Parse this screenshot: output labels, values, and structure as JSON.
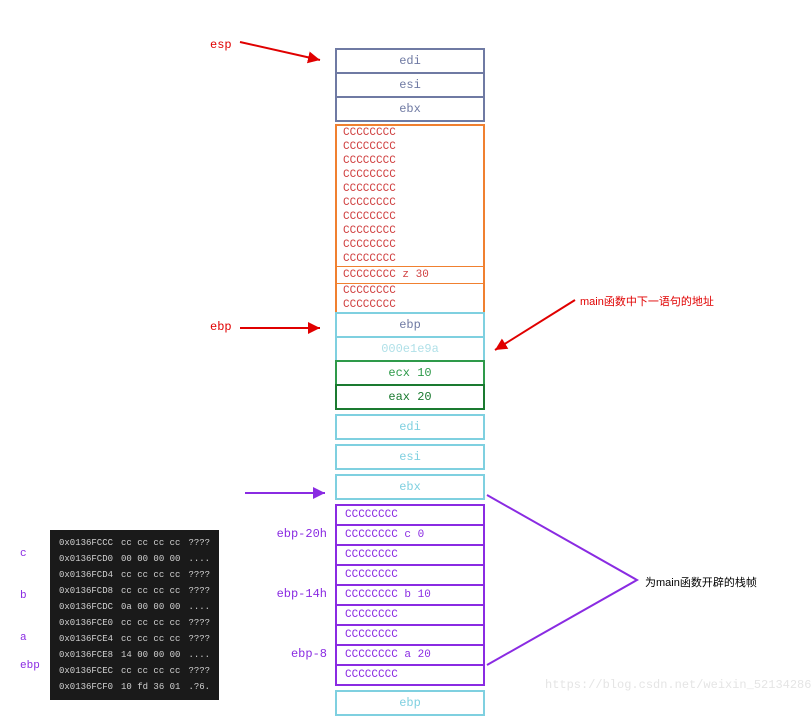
{
  "colors": {
    "slate": "#6f7aa3",
    "orange": "#f08030",
    "red_text": "#d04040",
    "cyan": "#7fd0e0",
    "light_cyan_text": "#b0e0e8",
    "green": "#2e9a4a",
    "darkgreen": "#1a7a30",
    "purple": "#8a2be2",
    "red": "#e00000",
    "black": "#000000"
  },
  "stack": {
    "top": [
      {
        "text": "edi",
        "border": "#6f7aa3",
        "color": "#6f7aa3"
      },
      {
        "text": "esi",
        "border": "#6f7aa3",
        "color": "#6f7aa3"
      },
      {
        "text": "ebx",
        "border": "#6f7aa3",
        "color": "#6f7aa3"
      }
    ],
    "orange_block": {
      "border": "#f08030",
      "text_color": "#d04040",
      "rows": [
        "CCCCCCCC",
        "CCCCCCCC",
        "CCCCCCCC",
        "CCCCCCCC",
        "CCCCCCCC",
        "CCCCCCCC",
        "CCCCCCCC",
        "CCCCCCCC",
        "CCCCCCCC",
        "CCCCCCCC"
      ],
      "z_row": "CCCCCCCC   z 30",
      "after": [
        "CCCCCCCC",
        "CCCCCCCC"
      ]
    },
    "mid": [
      {
        "text": "ebp",
        "border": "#7fd0e0",
        "color": "#6f7aa3"
      },
      {
        "text": "000e1e9a",
        "border": "#7fd0e0",
        "color": "#b0e0e8"
      },
      {
        "text": "ecx    10",
        "border": "#2e9a4a",
        "color": "#2e9a4a"
      },
      {
        "text": "eax    20",
        "border": "#1a7a30",
        "color": "#1a7a30"
      },
      {
        "text": "edi",
        "border": "#7fd0e0",
        "color": "#7fd0e0"
      },
      {
        "text": "esi",
        "border": "#7fd0e0",
        "color": "#7fd0e0"
      },
      {
        "text": "ebx",
        "border": "#7fd0e0",
        "color": "#7fd0e0"
      }
    ],
    "purple_block": {
      "border": "#8a2be2",
      "rows": [
        {
          "text": "CCCCCCCC",
          "lbl": ""
        },
        {
          "text": "CCCCCCCC    c 0",
          "lbl": "ebp-20h"
        },
        {
          "text": "CCCCCCCC",
          "lbl": ""
        },
        {
          "text": "CCCCCCCC",
          "lbl": ""
        },
        {
          "text": "CCCCCCCC    b 10",
          "lbl": "ebp-14h"
        },
        {
          "text": "CCCCCCCC",
          "lbl": ""
        },
        {
          "text": "CCCCCCCC",
          "lbl": ""
        },
        {
          "text": "CCCCCCCC   a 20",
          "lbl": "ebp-8"
        },
        {
          "text": "CCCCCCCC",
          "lbl": ""
        }
      ]
    },
    "bottom": {
      "text": "ebp",
      "border": "#7fd0e0",
      "color": "#7fd0e0"
    }
  },
  "labels": {
    "esp": "esp",
    "ebp1": "ebp",
    "note_right": "main函数中下一语句的地址",
    "note_main": "为main函数开辟的栈帧"
  },
  "memdump": {
    "labels": [
      "c",
      "b",
      "a",
      "ebp"
    ],
    "rows": [
      {
        "addr": "0x0136FCCC",
        "bytes": "cc cc cc cc",
        "asc": "????"
      },
      {
        "addr": "0x0136FCD0",
        "bytes": "00 00 00 00",
        "asc": "...."
      },
      {
        "addr": "0x0136FCD4",
        "bytes": "cc cc cc cc",
        "asc": "????"
      },
      {
        "addr": "0x0136FCD8",
        "bytes": "cc cc cc cc",
        "asc": "????"
      },
      {
        "addr": "0x0136FCDC",
        "bytes": "0a 00 00 00",
        "asc": "...."
      },
      {
        "addr": "0x0136FCE0",
        "bytes": "cc cc cc cc",
        "asc": "????"
      },
      {
        "addr": "0x0136FCE4",
        "bytes": "cc cc cc cc",
        "asc": "????"
      },
      {
        "addr": "0x0136FCE8",
        "bytes": "14 00 00 00",
        "asc": "...."
      },
      {
        "addr": "0x0136FCEC",
        "bytes": "cc cc cc cc",
        "asc": "????"
      },
      {
        "addr": "0x0136FCF0",
        "bytes": "10 fd 36 01",
        "asc": ".?6."
      }
    ]
  },
  "watermark": "https://blog.csdn.net/weixin_52134286"
}
